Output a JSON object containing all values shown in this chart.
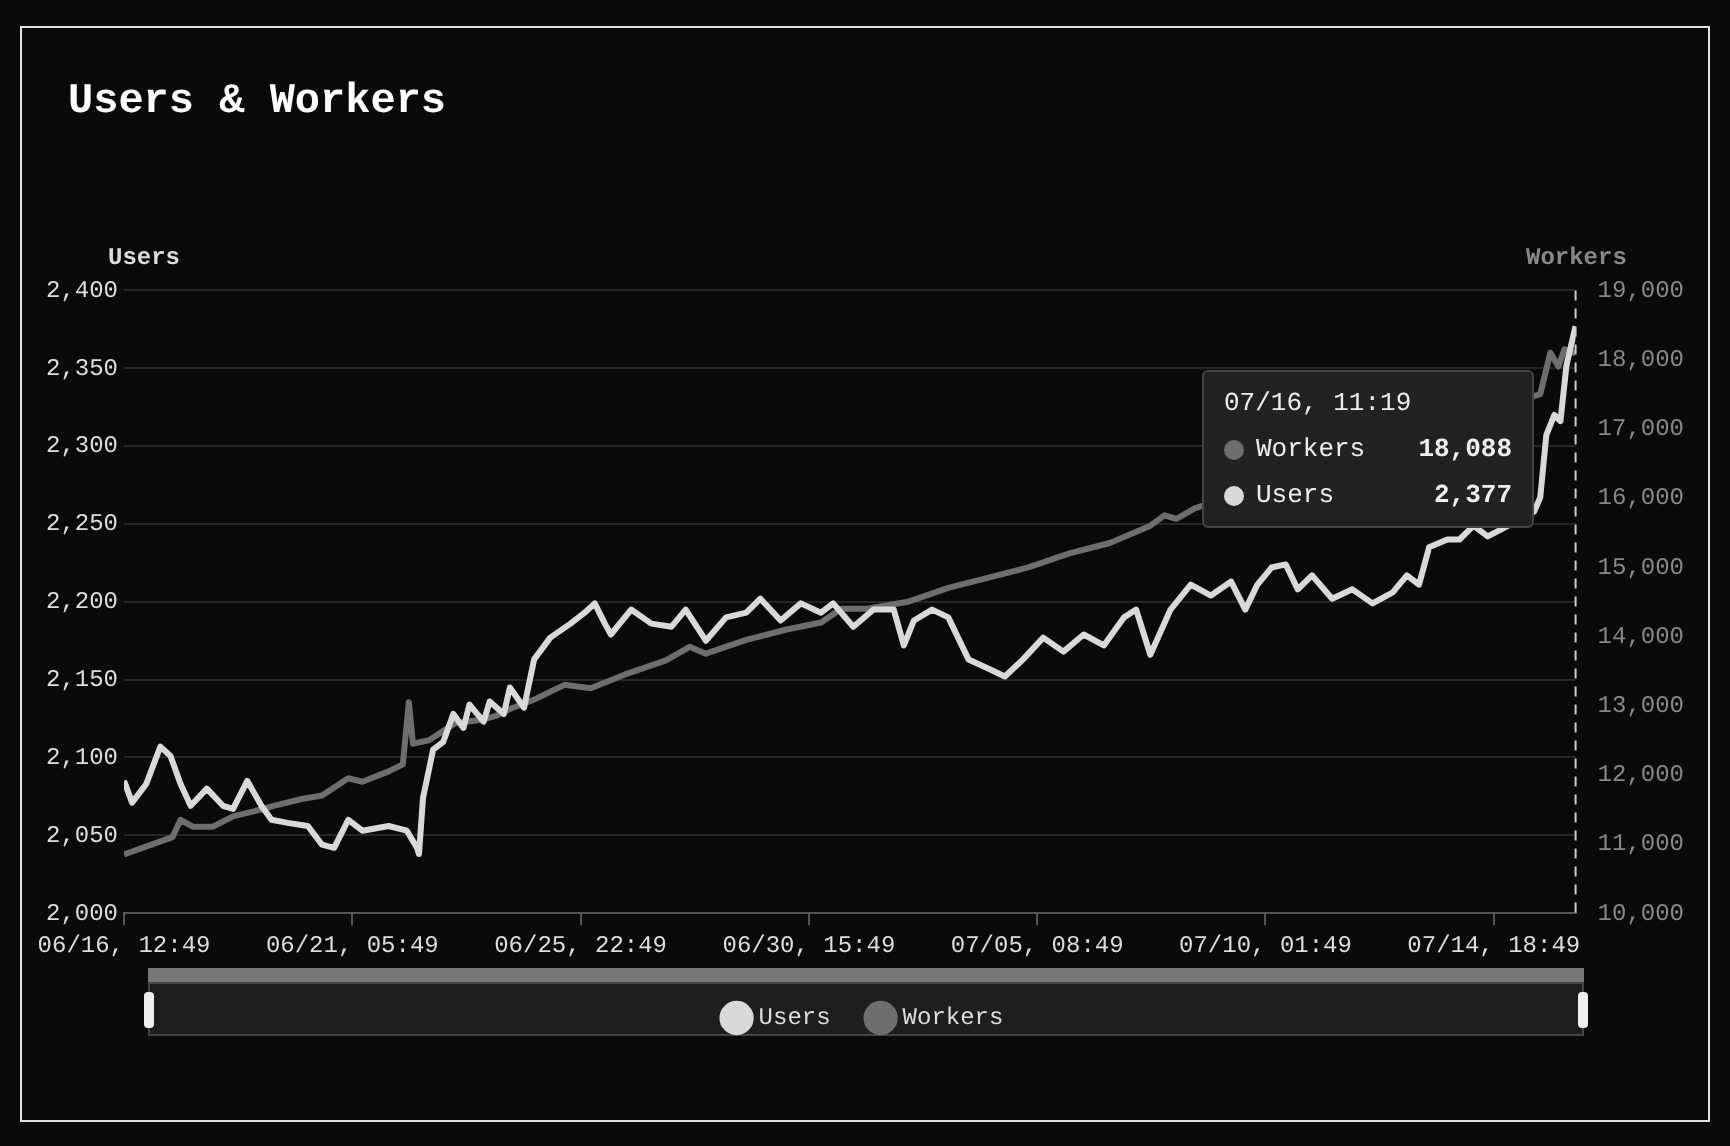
{
  "chart_data": {
    "type": "line",
    "title": "Users & Workers",
    "ylabel": "Users",
    "y2label": "Workers",
    "xlim": [
      "--06-16T12:49",
      "--07-16T11:19"
    ],
    "xticks": [
      {
        "value": "--06-16T12:49",
        "label": "06/16, 12:49"
      },
      {
        "value": "--06-21T05:49",
        "label": "06/21, 05:49"
      },
      {
        "value": "--06-25T22:49",
        "label": "06/25, 22:49"
      },
      {
        "value": "--06-30T15:49",
        "label": "06/30, 15:49"
      },
      {
        "value": "--07-05T08:49",
        "label": "07/05, 08:49"
      },
      {
        "value": "--07-10T01:49",
        "label": "07/10, 01:49"
      },
      {
        "value": "--07-14T18:49",
        "label": "07/14, 18:49"
      }
    ],
    "ylim": [
      2000,
      2400
    ],
    "yticks": [
      {
        "value": 2000,
        "label": "2,000"
      },
      {
        "value": 2050,
        "label": "2,050"
      },
      {
        "value": 2100,
        "label": "2,100"
      },
      {
        "value": 2150,
        "label": "2,150"
      },
      {
        "value": 2200,
        "label": "2,200"
      },
      {
        "value": 2250,
        "label": "2,250"
      },
      {
        "value": 2300,
        "label": "2,300"
      },
      {
        "value": 2350,
        "label": "2,350"
      },
      {
        "value": 2400,
        "label": "2,400"
      }
    ],
    "y2lim": [
      10000,
      19000
    ],
    "y2ticks": [
      {
        "value": 10000,
        "label": "10,000"
      },
      {
        "value": 11000,
        "label": "11,000"
      },
      {
        "value": 12000,
        "label": "12,000"
      },
      {
        "value": 13000,
        "label": "13,000"
      },
      {
        "value": 14000,
        "label": "14,000"
      },
      {
        "value": 15000,
        "label": "15,000"
      },
      {
        "value": 16000,
        "label": "16,000"
      },
      {
        "value": 17000,
        "label": "17,000"
      },
      {
        "value": 18000,
        "label": "18,000"
      },
      {
        "value": 19000,
        "label": "19,000"
      }
    ],
    "grid": "y",
    "legend": "bottom",
    "marker": "none",
    "line_style": "solid",
    "ref_lines": [
      {
        "axis": "x",
        "value": "--07-16T11:19",
        "color": "#cccccc",
        "line_style": "dashed"
      }
    ],
    "annotations": [
      "07/16, 11:19",
      "Workers 18,088",
      "Users 2,377"
    ],
    "series": [
      {
        "name": "Users",
        "color": "#d9d9d9",
        "x": [
          "--06-16T12:49",
          "--06-16T16:49",
          "--06-16T23:49",
          "--06-17T06:49",
          "--06-17T11:49",
          "--06-17T16:49",
          "--06-17T21:49",
          "--06-18T05:49",
          "--06-18T13:49",
          "--06-18T18:49",
          "--06-19T01:49",
          "--06-19T08:49",
          "--06-19T13:49",
          "--06-19T21:49",
          "--06-20T07:49",
          "--06-20T14:49",
          "--06-20T20:49",
          "--06-21T03:49",
          "--06-21T10:49",
          "--06-21T23:49",
          "--06-22T08:49",
          "--06-22T13:49",
          "--06-22T14:49",
          "--06-22T16:49",
          "--06-22T21:49",
          "--06-23T02:49",
          "--06-23T07:49",
          "--06-23T12:49",
          "--06-23T15:49",
          "--06-23T22:49",
          "--06-24T01:49",
          "--06-24T08:49",
          "--06-24T11:49",
          "--06-24T18:49",
          "--06-24T23:49",
          "--06-25T07:49",
          "--06-25T17:49",
          "--06-26T00:49",
          "--06-26T05:49",
          "--06-26T10:49",
          "--06-26T13:49",
          "--06-26T23:49",
          "--06-27T09:49",
          "--06-27T19:49",
          "--06-28T02:49",
          "--06-28T12:49",
          "--06-28T22:49",
          "--06-29T08:49",
          "--06-29T15:49",
          "--06-30T01:49",
          "--06-30T11:49",
          "--06-30T21:49",
          "--07-01T03:49",
          "--07-01T13:49",
          "--07-01T23:49",
          "--07-02T09:49",
          "--07-02T14:49",
          "--07-02T19:49",
          "--07-03T04:49",
          "--07-03T12:49",
          "--07-03T22:49",
          "--07-04T08:49",
          "--07-04T16:49",
          "--07-05T01:49",
          "--07-05T11:49",
          "--07-05T21:49",
          "--07-06T07:49",
          "--07-06T17:49",
          "--07-07T03:49",
          "--07-07T09:49",
          "--07-07T16:49",
          "--07-08T02:49",
          "--07-08T12:49",
          "--07-08T22:49",
          "--07-09T08:49",
          "--07-09T15:49",
          "--07-09T21:49",
          "--07-10T04:49",
          "--07-10T11:49",
          "--07-10T17:49",
          "--07-11T00:49",
          "--07-11T10:49",
          "--07-11T20:49",
          "--07-12T06:49",
          "--07-12T16:49",
          "--07-12T23:49",
          "--07-13T05:49",
          "--07-13T10:49",
          "--07-13T19:49",
          "--07-14T01:49",
          "--07-14T08:49",
          "--07-14T15:49",
          "--07-14T21:49",
          "--07-15T14:49",
          "--07-15T17:49",
          "--07-15T20:49",
          "--07-16T00:49",
          "--07-16T03:49",
          "--07-16T06:49",
          "--07-16T11:19"
        ],
        "values": [
          2085,
          2071,
          2083,
          2107,
          2101,
          2083,
          2069,
          2080,
          2069,
          2067,
          2085,
          2069,
          2060,
          2058,
          2056,
          2044,
          2042,
          2060,
          2053,
          2056,
          2053,
          2042,
          2038,
          2074,
          2105,
          2110,
          2128,
          2119,
          2134,
          2123,
          2136,
          2128,
          2145,
          2132,
          2163,
          2177,
          2186,
          2193,
          2199,
          2186,
          2179,
          2195,
          2186,
          2184,
          2195,
          2175,
          2190,
          2193,
          2202,
          2188,
          2199,
          2193,
          2199,
          2184,
          2195,
          2195,
          2172,
          2188,
          2195,
          2190,
          2163,
          2157,
          2152,
          2163,
          2177,
          2168,
          2179,
          2172,
          2190,
          2195,
          2166,
          2195,
          2211,
          2204,
          2213,
          2195,
          2211,
          2222,
          2224,
          2208,
          2217,
          2202,
          2208,
          2199,
          2206,
          2217,
          2211,
          2235,
          2240,
          2240,
          2249,
          2242,
          2246,
          2258,
          2267,
          2307,
          2320,
          2316,
          2352,
          2377
        ]
      },
      {
        "name": "Workers",
        "color": "#6e6e6e",
        "axis": "y2",
        "x": [
          "--06-16T12:49",
          "--06-17T12:49",
          "--06-17T16:49",
          "--06-17T22:49",
          "--06-18T08:49",
          "--06-18T18:49",
          "--06-19T08:49",
          "--06-19T14:49",
          "--06-20T04:49",
          "--06-20T14:49",
          "--06-21T03:49",
          "--06-21T10:49",
          "--06-21T23:49",
          "--06-22T06:49",
          "--06-22T09:49",
          "--06-22T11:49",
          "--06-22T19:49",
          "--06-23T08:49",
          "--06-23T22:49",
          "--06-24T04:49",
          "--06-24T11:49",
          "--06-25T00:49",
          "--06-25T14:49",
          "--06-26T03:49",
          "--06-26T20:49",
          "--06-27T16:49",
          "--06-28T04:49",
          "--06-28T12:49",
          "--06-29T08:49",
          "--06-30T04:49",
          "--06-30T21:49",
          "--07-01T07:49",
          "--07-01T20:49",
          "--07-02T16:49",
          "--07-03T12:49",
          "--07-04T08:49",
          "--07-05T04:49",
          "--07-06T00:49",
          "--07-06T20:49",
          "--07-07T16:49",
          "--07-07T23:49",
          "--07-08T05:49",
          "--07-08T14:49",
          "--07-15T17:49",
          "--07-15T22:49",
          "--07-16T02:49",
          "--07-16T05:49",
          "--07-16T11:19"
        ],
        "values": [
          10850,
          11100,
          11350,
          11250,
          11250,
          11400,
          11500,
          11550,
          11650,
          11700,
          11950,
          11900,
          12050,
          12150,
          13050,
          12450,
          12500,
          12750,
          12800,
          12850,
          12950,
          13100,
          13300,
          13250,
          13450,
          13650,
          13850,
          13750,
          13950,
          14100,
          14200,
          14400,
          14400,
          14500,
          14700,
          14850,
          15000,
          15200,
          15350,
          15600,
          15750,
          15700,
          15850,
          17500,
          18100,
          17900,
          18150,
          18088
        ]
      }
    ]
  }
}
